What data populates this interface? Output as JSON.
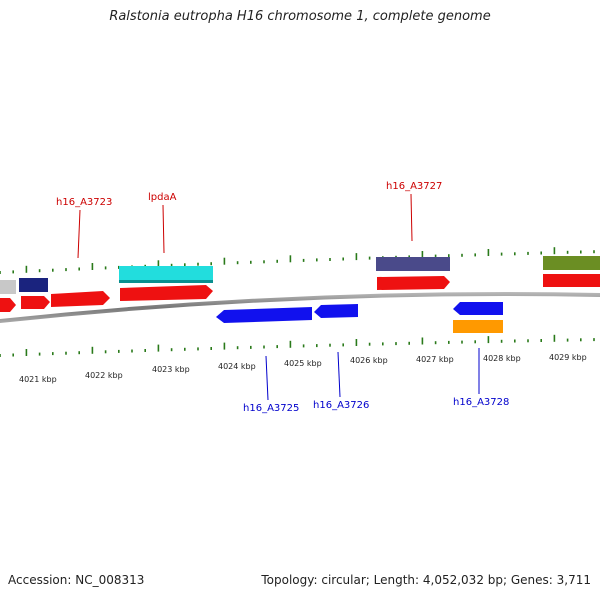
{
  "title": "Ralstonia eutropha H16 chromosome 1, complete genome",
  "footer": {
    "accession": "Accession: NC_008313",
    "summary": "Topology: circular; Length: 4,052,032 bp; Genes: 3,711"
  },
  "ticks": [
    {
      "label": "4021 kbp"
    },
    {
      "label": "4022 kbp"
    },
    {
      "label": "4023 kbp"
    },
    {
      "label": "4024 kbp"
    },
    {
      "label": "4025 kbp"
    },
    {
      "label": "4026 kbp"
    },
    {
      "label": "4027 kbp"
    },
    {
      "label": "4028 kbp"
    },
    {
      "label": "4029 kbp"
    }
  ],
  "gene_labels": [
    {
      "text": "h16_A3723",
      "strand": "plus",
      "color": "#cc0000"
    },
    {
      "text": "lpdaA",
      "strand": "plus",
      "color": "#cc0000"
    },
    {
      "text": "h16_A3727",
      "strand": "plus",
      "color": "#cc0000"
    },
    {
      "text": "h16_A3725",
      "strand": "minus",
      "color": "#0000cc"
    },
    {
      "text": "h16_A3726",
      "strand": "minus",
      "color": "#0000cc"
    },
    {
      "text": "h16_A3728",
      "strand": "minus",
      "color": "#0000cc"
    }
  ],
  "colors": {
    "gene_plus": "#ee1111",
    "gene_minus": "#1111ee",
    "backbone": "#888888",
    "tick": "#2a7a1a",
    "cyan_feature": "#22dddd",
    "navy_feature": "#1a237e",
    "slate_feature": "#4a4a8a",
    "orange_feature": "#ff9900",
    "olive_feature": "#6b8e23",
    "gray_feature": "#c8c8c8"
  }
}
